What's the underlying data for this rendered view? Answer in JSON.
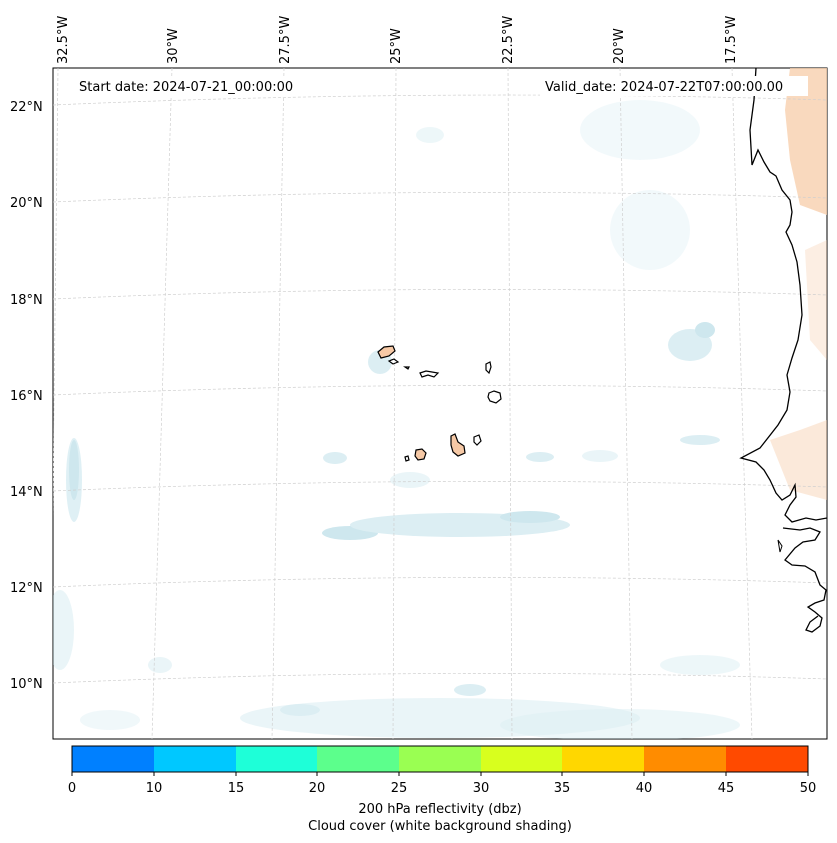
{
  "header": {
    "start_date": "Start date: 2024-07-21_00:00:00",
    "valid_date": "Valid_date: 2024-07-22T07:00:00.00"
  },
  "lon_labels": [
    "32.5°W",
    "30°W",
    "27.5°W",
    "25°W",
    "22.5°W",
    "20°W",
    "17.5°W"
  ],
  "lat_labels": [
    "22°N",
    "20°N",
    "18°N",
    "16°N",
    "14°N",
    "12°N",
    "10°N"
  ],
  "colorbar": {
    "ticks": [
      "0",
      "10",
      "15",
      "20",
      "25",
      "30",
      "35",
      "40",
      "45",
      "50"
    ],
    "colors": [
      "#0080ff",
      "#00c8ff",
      "#1effd8",
      "#5cff8c",
      "#9aff52",
      "#d8ff1e",
      "#ffd700",
      "#ff8c00",
      "#ff4a00"
    ],
    "label_line1": "200 hPa reflectivity (dbz)",
    "label_line2": "Cloud cover (white background shading)"
  },
  "colors": {
    "cloud": "#b9dce6",
    "land_warm": "#f6c9a6",
    "grid": "#c8c8c8",
    "coast": "#000000"
  },
  "icons": {
    "map_icon": "geographic-map",
    "island_icon": "island-outline"
  }
}
